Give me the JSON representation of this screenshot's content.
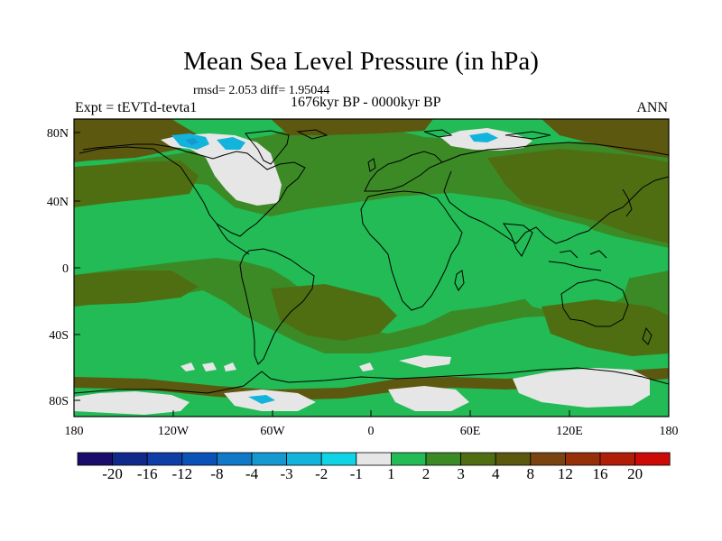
{
  "title": "Mean Sea Level Pressure (in hPa)",
  "stats": "rmsd= 2.053  diff= 1.95044",
  "period": "1676kyr BP - 0000kyr BP",
  "experiment": "Expt = tEVTd-tevta1",
  "season": "ANN",
  "map": {
    "projection": "cylindrical-equidistant",
    "lon_range": [
      -180,
      180
    ],
    "lat_range": [
      -90,
      90
    ],
    "x_ticks": [
      "180",
      "120W",
      "60W",
      "0",
      "60E",
      "120E",
      "180"
    ],
    "y_ticks": [
      "80N",
      "40N",
      "0",
      "40S",
      "80S"
    ],
    "x_tick_values": [
      -180,
      -120,
      -60,
      0,
      60,
      120,
      180
    ],
    "y_tick_values": [
      80,
      40,
      0,
      -40,
      -80
    ]
  },
  "colorbar": {
    "labels": [
      "-20",
      "-16",
      "-12",
      "-8",
      "-4",
      "-3",
      "-2",
      "-1",
      "1",
      "2",
      "3",
      "4",
      "8",
      "12",
      "16",
      "20"
    ],
    "colors": [
      "#1a0c6b",
      "#102a8c",
      "#0e3ea6",
      "#0a52b8",
      "#1278c8",
      "#1698d0",
      "#12b4dc",
      "#10d4e6",
      "#e6e6e6",
      "#22bb55",
      "#3c8a26",
      "#4f6e12",
      "#5c5810",
      "#7a4410",
      "#963008",
      "#b01e08",
      "#cc0a06"
    ]
  },
  "palette": {
    "land_green": "#22bb55",
    "ocean_olive": "#4f6e12",
    "dark_olive": "#3c8a26",
    "brown": "#5c5810",
    "near_zero": "#e6e6e6",
    "cyan": "#12b4dc",
    "blue": "#1698d0"
  }
}
